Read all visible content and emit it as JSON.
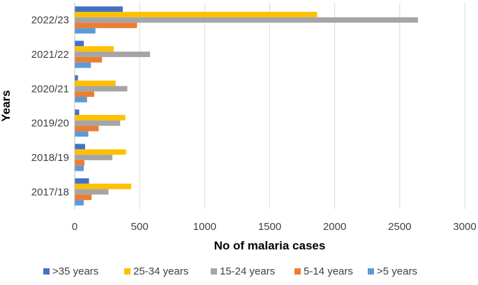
{
  "chart_data": {
    "type": "bar",
    "orientation": "horizontal",
    "title": "",
    "xlabel": "No of malaria cases",
    "ylabel": "Years",
    "xlim": [
      0,
      3000
    ],
    "xticks": [
      0,
      500,
      1000,
      1500,
      2000,
      2500,
      3000
    ],
    "grid": true,
    "legend_position": "bottom",
    "categories": [
      "2017/18",
      "2018/19",
      "2019/20",
      "2020/21",
      "2021/22",
      "2022/23"
    ],
    "series": [
      {
        "name": ">35 years",
        "color": "#4472C4",
        "values": [
          110,
          80,
          35,
          25,
          70,
          370
        ]
      },
      {
        "name": "25-34 years",
        "color": "#FFC000",
        "values": [
          435,
          395,
          390,
          315,
          300,
          1865
        ]
      },
      {
        "name": "15-24 years",
        "color": "#A5A5A5",
        "values": [
          260,
          290,
          350,
          405,
          580,
          2640
        ]
      },
      {
        "name": "5-14 years",
        "color": "#ED7D31",
        "values": [
          130,
          75,
          185,
          150,
          210,
          480
        ]
      },
      {
        "name": ">5 years",
        "color": "#5B9BD5",
        "values": [
          70,
          70,
          105,
          95,
          125,
          160
        ]
      }
    ]
  }
}
